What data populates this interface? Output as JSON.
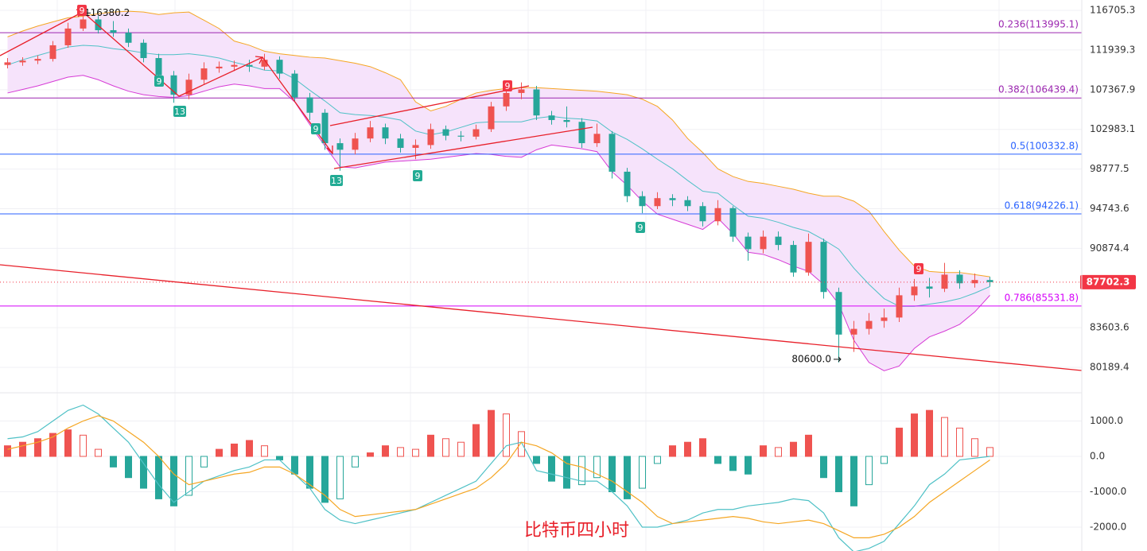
{
  "chart_data": [
    {
      "type": "candlestick",
      "title": "比特币四小时",
      "log_scale": true,
      "grid": true,
      "ylim": [
        78336,
        117985
      ],
      "yticks": [
        116705.3,
        111939.3,
        107367.9,
        102983.1,
        98777.5,
        94743.6,
        90874.4,
        83603.6,
        80189.4
      ],
      "up_color": "#ef5350",
      "down_color": "#26a69a",
      "open": [
        110200,
        110500,
        110700,
        110900,
        112500,
        114500,
        115600,
        114300,
        114000,
        112800,
        111000,
        109000,
        106800,
        108500,
        109800,
        110000,
        110200,
        110000,
        110800,
        109200,
        106500,
        104800,
        101500,
        100800,
        102000,
        103200,
        102000,
        101000,
        101300,
        103000,
        102300,
        102200,
        103000,
        105500,
        107000,
        107400,
        104500,
        104000,
        103800,
        101500,
        102500,
        98500,
        96000,
        95000,
        95800,
        95600,
        95000,
        93500,
        94800,
        92000,
        90800,
        92000,
        91200,
        88600,
        91500,
        86800,
        83000,
        83500,
        84200,
        84500,
        86500,
        87300,
        87100,
        88400,
        87600,
        87900
      ],
      "high": [
        111000,
        111100,
        111300,
        113000,
        115200,
        116380.2,
        116000,
        115400,
        114500,
        113200,
        111500,
        109500,
        109200,
        110500,
        110600,
        110700,
        110800,
        111500,
        111200,
        109600,
        107000,
        105200,
        102000,
        102600,
        103900,
        103600,
        102500,
        101900,
        103600,
        103400,
        102800,
        103500,
        106000,
        107600,
        108200,
        107800,
        105000,
        105500,
        104200,
        103600,
        102800,
        98900,
        96500,
        96400,
        96200,
        96000,
        95400,
        95600,
        95000,
        92400,
        92600,
        92500,
        91600,
        92300,
        91800,
        87200,
        84200,
        84900,
        85300,
        87200,
        88000,
        88100,
        89500,
        88800,
        88500,
        88200
      ],
      "low": [
        109800,
        110100,
        110300,
        110600,
        112200,
        114200,
        113900,
        113500,
        112300,
        110500,
        108300,
        105900,
        106300,
        108000,
        109300,
        109500,
        109400,
        109600,
        108600,
        106000,
        104000,
        100800,
        98600,
        100300,
        101600,
        101400,
        100500,
        99800,
        100900,
        101800,
        101700,
        101900,
        102700,
        105000,
        106300,
        104000,
        103500,
        103200,
        101000,
        101100,
        97800,
        95400,
        94300,
        94700,
        95000,
        94500,
        93000,
        93100,
        91500,
        89700,
        90400,
        90700,
        88200,
        88300,
        86200,
        80600,
        81500,
        83000,
        83600,
        84100,
        86000,
        86300,
        86800,
        87100,
        87200,
        87300
      ],
      "close": [
        110500,
        110700,
        110900,
        112500,
        114500,
        115600,
        114300,
        114000,
        112800,
        111000,
        109000,
        106800,
        108500,
        109800,
        110000,
        110200,
        110000,
        110800,
        109200,
        106500,
        104800,
        101500,
        100800,
        102000,
        103200,
        102000,
        101000,
        101300,
        103000,
        102300,
        102200,
        103000,
        105500,
        107000,
        107400,
        104500,
        104000,
        103800,
        101500,
        102500,
        98500,
        96000,
        95000,
        95800,
        95600,
        95000,
        93500,
        94800,
        92000,
        90800,
        92000,
        91200,
        88600,
        91500,
        86800,
        83000,
        83500,
        84200,
        84500,
        86500,
        87300,
        87100,
        88400,
        87600,
        87900,
        87702.3
      ],
      "bands": [
        {
          "color": "#f5a623",
          "values": [
            113500,
            114200,
            114800,
            115300,
            115800,
            116000,
            116300,
            116500,
            116600,
            116500,
            116200,
            116400,
            116500,
            115500,
            114500,
            113000,
            112500,
            111800,
            111500,
            111300,
            111100,
            111000,
            110700,
            110400,
            110000,
            109300,
            108500,
            106000,
            105000,
            105500,
            106300,
            107000,
            107300,
            107500,
            107600,
            107600,
            107500,
            107400,
            107300,
            107200,
            107000,
            106800,
            106300,
            105500,
            104000,
            102000,
            100500,
            98800,
            98000,
            97500,
            97300,
            97000,
            96700,
            96300,
            96000,
            96000,
            95500,
            94500,
            92500,
            90700,
            89200,
            88700,
            88600,
            88600,
            88400,
            88200
          ]
        },
        {
          "color": "#4fc1c6",
          "values": [
            110200,
            110800,
            111300,
            111800,
            112300,
            112500,
            112400,
            112100,
            111900,
            111600,
            111400,
            111400,
            111500,
            111300,
            111000,
            110500,
            110100,
            109600,
            109500,
            108600,
            107300,
            106100,
            104800,
            104600,
            104500,
            104300,
            104000,
            102800,
            102400,
            102700,
            103200,
            103700,
            103800,
            103800,
            103800,
            104200,
            104400,
            104200,
            104100,
            103900,
            102700,
            101900,
            100900,
            99800,
            98800,
            97600,
            96500,
            96300,
            95100,
            94000,
            93800,
            93400,
            92900,
            92500,
            91700,
            90800,
            89000,
            87500,
            86200,
            85500,
            85500,
            85700,
            85900,
            86200,
            86700,
            87300
          ]
        },
        {
          "color": "#d63bd6",
          "values": [
            107000,
            107400,
            107800,
            108300,
            108800,
            109000,
            108500,
            107800,
            107200,
            106800,
            106600,
            106500,
            106700,
            107200,
            107700,
            108000,
            107800,
            107500,
            107500,
            106000,
            103500,
            101200,
            99000,
            98900,
            99200,
            99500,
            99600,
            99700,
            99800,
            100000,
            100200,
            100400,
            100300,
            100100,
            100000,
            100800,
            101300,
            101100,
            100900,
            100600,
            98500,
            97100,
            95500,
            94200,
            93700,
            93200,
            92700,
            93800,
            92300,
            90500,
            90300,
            89800,
            89200,
            88700,
            87500,
            85700,
            82500,
            80600,
            79900,
            80300,
            81800,
            82800,
            83300,
            83900,
            85000,
            86500
          ]
        }
      ],
      "band_fill": "#f6e3fb",
      "fib_levels": [
        {
          "value": 113995.1,
          "label": "0.236(113995.1)",
          "color": "#9c27b0"
        },
        {
          "value": 106439.4,
          "label": "0.382(106439.4)",
          "color": "#9c27b0"
        },
        {
          "value": 100332.8,
          "label": "0.5(100332.8)",
          "color": "#2962ff"
        },
        {
          "value": 94226.1,
          "label": "0.618(94226.1)",
          "color": "#2962ff"
        },
        {
          "value": 85531.8,
          "label": "0.786(85531.8)",
          "color": "#d500f9"
        }
      ],
      "last_price": 87702.3,
      "last_price_color": "#f23645",
      "annotations": [
        {
          "value": 116380.2,
          "label": "116380.2"
        },
        {
          "value": 80600,
          "label": "80600.0"
        }
      ],
      "markers": [
        {
          "label": "9",
          "color": "#f23645"
        },
        {
          "label": "9",
          "color": "#f23645"
        },
        {
          "label": "9",
          "color": "#f23645"
        },
        {
          "label": "9",
          "color": "#22ab94"
        },
        {
          "label": "13",
          "color": "#22ab94"
        },
        {
          "label": "9",
          "color": "#22ab94"
        },
        {
          "label": "13",
          "color": "#22ab94"
        },
        {
          "label": "9",
          "color": "#22ab94"
        },
        {
          "label": "9",
          "color": "#22ab94"
        }
      ]
    },
    {
      "type": "macd",
      "ylim": [
        -2674,
        1663
      ],
      "yticks": [
        {
          "value": 1000,
          "label": "1000.0"
        },
        {
          "value": 0,
          "label": "0.0"
        },
        {
          "value": -1000,
          "label": "-1000.0"
        },
        {
          "value": -2000,
          "label": "-2000.0"
        }
      ],
      "histogram": [
        300,
        400,
        500,
        650,
        750,
        600,
        200,
        -300,
        -600,
        -900,
        -1200,
        -1400,
        -1100,
        -300,
        200,
        350,
        450,
        300,
        -100,
        -500,
        -900,
        -1300,
        -1200,
        -300,
        100,
        300,
        250,
        200,
        600,
        500,
        400,
        900,
        1300,
        1200,
        700,
        -200,
        -700,
        -900,
        -800,
        -600,
        -1000,
        -1200,
        -900,
        -200,
        300,
        400,
        500,
        -200,
        -400,
        -500,
        300,
        250,
        400,
        600,
        -600,
        -1000,
        -1400,
        -800,
        -200,
        800,
        1200,
        1300,
        1100,
        800,
        500,
        250
      ],
      "up_color": "#ef5350",
      "down_color": "#26a69a",
      "series": [
        {
          "color": "#4fc1c6",
          "values": [
            500,
            550,
            700,
            1000,
            1300,
            1450,
            1200,
            800,
            400,
            -200,
            -800,
            -1300,
            -1000,
            -700,
            -550,
            -400,
            -300,
            -100,
            -100,
            -500,
            -900,
            -1500,
            -1800,
            -1900,
            -1800,
            -1700,
            -1600,
            -1500,
            -1300,
            -1100,
            -900,
            -700,
            -200,
            300,
            400,
            -400,
            -500,
            -600,
            -700,
            -700,
            -1000,
            -1400,
            -2000,
            -2000,
            -1900,
            -1800,
            -1600,
            -1500,
            -1500,
            -1400,
            -1350,
            -1300,
            -1200,
            -1250,
            -1600,
            -2300,
            -2700,
            -2600,
            -2400,
            -1900,
            -1400,
            -800,
            -500,
            -100,
            -50,
            0
          ]
        },
        {
          "color": "#f5a623",
          "values": [
            200,
            300,
            400,
            550,
            800,
            1000,
            1150,
            1000,
            700,
            400,
            0,
            -500,
            -800,
            -700,
            -600,
            -500,
            -450,
            -300,
            -300,
            -500,
            -800,
            -1100,
            -1500,
            -1700,
            -1650,
            -1600,
            -1550,
            -1500,
            -1350,
            -1200,
            -1050,
            -900,
            -600,
            -200,
            400,
            300,
            100,
            -200,
            -300,
            -500,
            -700,
            -1000,
            -1300,
            -1700,
            -1900,
            -1850,
            -1800,
            -1750,
            -1700,
            -1750,
            -1850,
            -1900,
            -1850,
            -1800,
            -1900,
            -2100,
            -2300,
            -2300,
            -2200,
            -2000,
            -1700,
            -1300,
            -1000,
            -700,
            -400,
            -100
          ]
        }
      ]
    }
  ]
}
